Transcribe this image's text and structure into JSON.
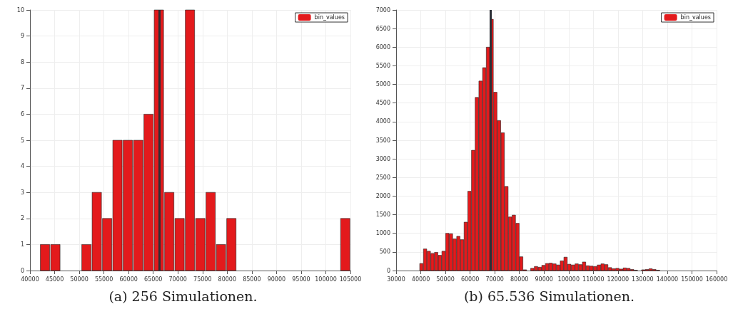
{
  "chart_data": [
    {
      "type": "histogram",
      "title": "(a) 256 Simulationen.",
      "bins": [
        42000,
        44100,
        46200,
        48300,
        50400,
        52500,
        54600,
        56700,
        58800,
        60900,
        63000,
        65100,
        67200,
        69300,
        71400,
        73500,
        75600,
        77700,
        79800,
        81900,
        84000,
        86100,
        88200,
        90300,
        92400,
        94500,
        96600,
        98700,
        100800,
        102900,
        105000
      ],
      "series": [
        {
          "name": "bin_values",
          "color": "#e31a1c",
          "values": [
            1,
            1,
            0,
            0,
            1,
            3,
            2,
            5,
            5,
            5,
            6,
            10,
            3,
            2,
            10,
            2,
            3,
            1,
            2,
            0,
            0,
            0,
            0,
            0,
            0,
            0,
            0,
            0,
            0,
            2
          ]
        }
      ],
      "xlim": [
        40000,
        105000
      ],
      "xticks": [
        40000,
        45000,
        50000,
        55000,
        60000,
        65000,
        70000,
        75000,
        80000,
        85000,
        90000,
        95000,
        100000,
        105000
      ],
      "ylim": [
        0,
        10
      ],
      "yticks": [
        0,
        1,
        2,
        3,
        4,
        5,
        6,
        7,
        8,
        9,
        10
      ],
      "ref_lines": [
        {
          "axis": "x",
          "value": 66300,
          "color": "#2b2f36"
        }
      ],
      "grid": true,
      "legend": "top right"
    },
    {
      "type": "histogram",
      "title": "(b) 65.536 Simulationen.",
      "bins": [
        39500,
        41000,
        42500,
        44000,
        45500,
        47000,
        48500,
        50000,
        51500,
        53000,
        54500,
        56000,
        57500,
        59000,
        60500,
        62000,
        63500,
        65000,
        66500,
        68000,
        69500,
        71000,
        72500,
        74000,
        75500,
        77000,
        78500,
        80000,
        81500,
        83000,
        84500,
        86000,
        87500,
        89000,
        90500,
        92000,
        93500,
        95000,
        96500,
        98000,
        99500,
        101000,
        102500,
        104000,
        105500,
        107000,
        108500,
        110000,
        111500,
        113000,
        114500,
        116000,
        117500,
        119000,
        120500,
        122000,
        123500,
        125000,
        126500,
        128000,
        129500,
        131000,
        132500,
        134000,
        135500,
        137000
      ],
      "series": [
        {
          "name": "bin_values",
          "color": "#e31a1c",
          "values": [
            190,
            580,
            520,
            460,
            490,
            410,
            520,
            1000,
            990,
            850,
            920,
            830,
            1300,
            2130,
            3230,
            4650,
            5090,
            5450,
            6000,
            6750,
            4790,
            4030,
            3700,
            2260,
            1440,
            1490,
            1270,
            370,
            20,
            0,
            60,
            110,
            90,
            140,
            190,
            200,
            180,
            150,
            260,
            360,
            170,
            150,
            180,
            160,
            230,
            130,
            120,
            110,
            150,
            180,
            160,
            80,
            50,
            60,
            40,
            70,
            60,
            30,
            10,
            0,
            20,
            30,
            50,
            30,
            10
          ]
        }
      ],
      "xlim": [
        30000,
        160000
      ],
      "xticks": [
        30000,
        40000,
        50000,
        60000,
        70000,
        80000,
        90000,
        100000,
        110000,
        120000,
        130000,
        140000,
        150000,
        160000
      ],
      "ylim": [
        0,
        7000
      ],
      "yticks": [
        0,
        500,
        1000,
        1500,
        2000,
        2500,
        3000,
        3500,
        4000,
        4500,
        5000,
        5500,
        6000,
        6500,
        7000
      ],
      "ref_lines": [
        {
          "axis": "x",
          "value": 68200,
          "color": "#2b2f36"
        }
      ],
      "grid": true,
      "legend": "top right"
    }
  ]
}
